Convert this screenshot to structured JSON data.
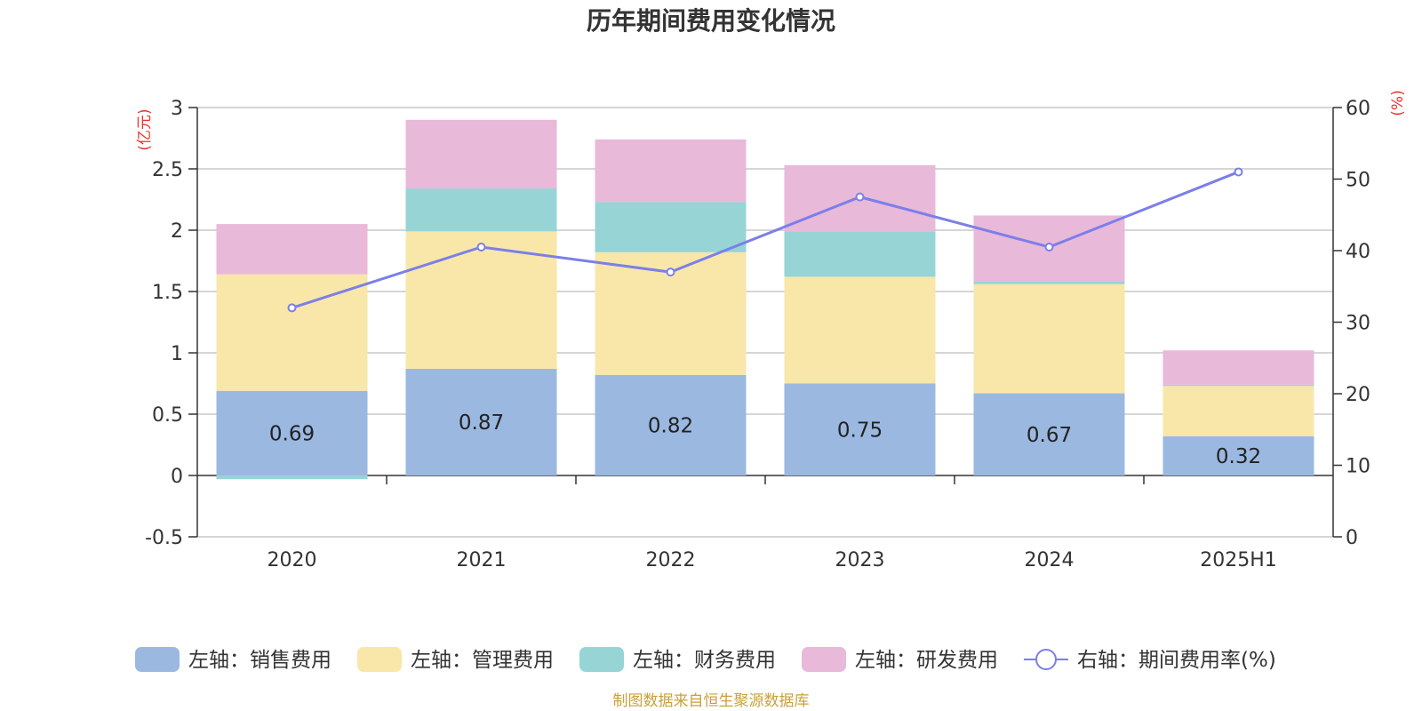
{
  "chart_data": {
    "type": "bar",
    "title": "历年期间费用变化情况",
    "categories": [
      "2020",
      "2021",
      "2022",
      "2023",
      "2024",
      "2025H1"
    ],
    "left_axis": {
      "unit": "(亿元)",
      "ylim": [
        -0.5,
        3
      ],
      "ticks": [
        "3",
        "2.5",
        "2",
        "1.5",
        "1",
        "0.5",
        "0",
        "-0.5"
      ]
    },
    "right_axis": {
      "unit": "(%)",
      "ylim": [
        0,
        60
      ],
      "ticks": [
        "60",
        "50",
        "40",
        "30",
        "20",
        "10",
        "0"
      ]
    },
    "series": [
      {
        "name": "左轴：销售费用",
        "type": "bar",
        "axis": "left",
        "color": "#9bb8e1",
        "values": [
          0.69,
          0.87,
          0.82,
          0.75,
          0.67,
          0.32
        ],
        "labels": [
          "0.69",
          "0.87",
          "0.82",
          "0.75",
          "0.67",
          "0.32"
        ]
      },
      {
        "name": "左轴：管理费用",
        "type": "bar",
        "axis": "left",
        "color": "#f8e7a9",
        "values": [
          0.95,
          1.12,
          1.0,
          0.87,
          0.89,
          0.41
        ]
      },
      {
        "name": "左轴：财务费用",
        "type": "bar",
        "axis": "left",
        "color": "#97d4d5",
        "values": [
          -0.03,
          0.35,
          0.41,
          0.37,
          0.02,
          0.01
        ]
      },
      {
        "name": "左轴：研发费用",
        "type": "bar",
        "axis": "left",
        "color": "#e8b9d9",
        "values": [
          0.41,
          0.56,
          0.51,
          0.54,
          0.54,
          0.28
        ]
      },
      {
        "name": "右轴：期间费用率(%)",
        "type": "line",
        "axis": "right",
        "color": "#7b7fe9",
        "values": [
          32,
          40.5,
          37,
          47.5,
          40.5,
          51
        ]
      }
    ],
    "grid": true,
    "legend_position": "bottom"
  },
  "source_note": "制图数据来自恒生聚源数据库"
}
